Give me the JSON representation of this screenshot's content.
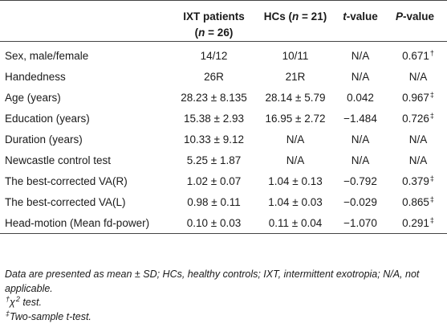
{
  "header": {
    "col1_line1": "IXT patients",
    "col1_line2_pre": "(",
    "col1_line2_var": "n",
    "col1_line2_post": " = 26)",
    "col2_pre": "HCs (",
    "col2_var": "n",
    "col2_post": " = 21)",
    "col3_var": "t",
    "col3_post": "-value",
    "col4_var": "P",
    "col4_post": "-value"
  },
  "rows": [
    {
      "label": "Sex, male/female",
      "ixt": "14/12",
      "hc": "10/11",
      "t": "N/A",
      "p": "0.671",
      "mark": "†"
    },
    {
      "label": "Handedness",
      "ixt": "26R",
      "hc": "21R",
      "t": "N/A",
      "p": "N/A",
      "mark": ""
    },
    {
      "label": "Age (years)",
      "ixt": "28.23 ± 8.135",
      "hc": "28.14 ± 5.79",
      "t": "0.042",
      "p": "0.967",
      "mark": "‡"
    },
    {
      "label": "Education (years)",
      "ixt": "15.38 ± 2.93",
      "hc": "16.95 ± 2.72",
      "t": "−1.484",
      "p": "0.726",
      "mark": "‡"
    },
    {
      "label": "Duration (years)",
      "ixt": "10.33 ± 9.12",
      "hc": "N/A",
      "t": "N/A",
      "p": "N/A",
      "mark": ""
    },
    {
      "label": "Newcastle control test",
      "ixt": "5.25 ± 1.87",
      "hc": "N/A",
      "t": "N/A",
      "p": "N/A",
      "mark": ""
    },
    {
      "label": "The best-corrected VA(R)",
      "ixt": "1.02 ± 0.07",
      "hc": "1.04 ± 0.13",
      "t": "−0.792",
      "p": "0.379",
      "mark": "‡"
    },
    {
      "label": "The best-corrected VA(L)",
      "ixt": "0.98 ± 0.11",
      "hc": "1.04 ± 0.03",
      "t": "−0.029",
      "p": "0.865",
      "mark": "‡"
    },
    {
      "label": "Head-motion (Mean fd-power)",
      "ixt": "0.10 ± 0.03",
      "hc": "0.11 ± 0.04",
      "t": "−1.070",
      "p": "0.291",
      "mark": "‡"
    }
  ],
  "notes": {
    "line1": "Data are presented as mean ± SD; HCs, healthy controls; IXT, intermittent exotropia; N/A, not applicable.",
    "line2_mark": "†",
    "line2_sym": "χ",
    "line2_sup": "2",
    "line2_text": " test.",
    "line3_mark": "‡",
    "line3_text": "Two-sample t-test."
  }
}
